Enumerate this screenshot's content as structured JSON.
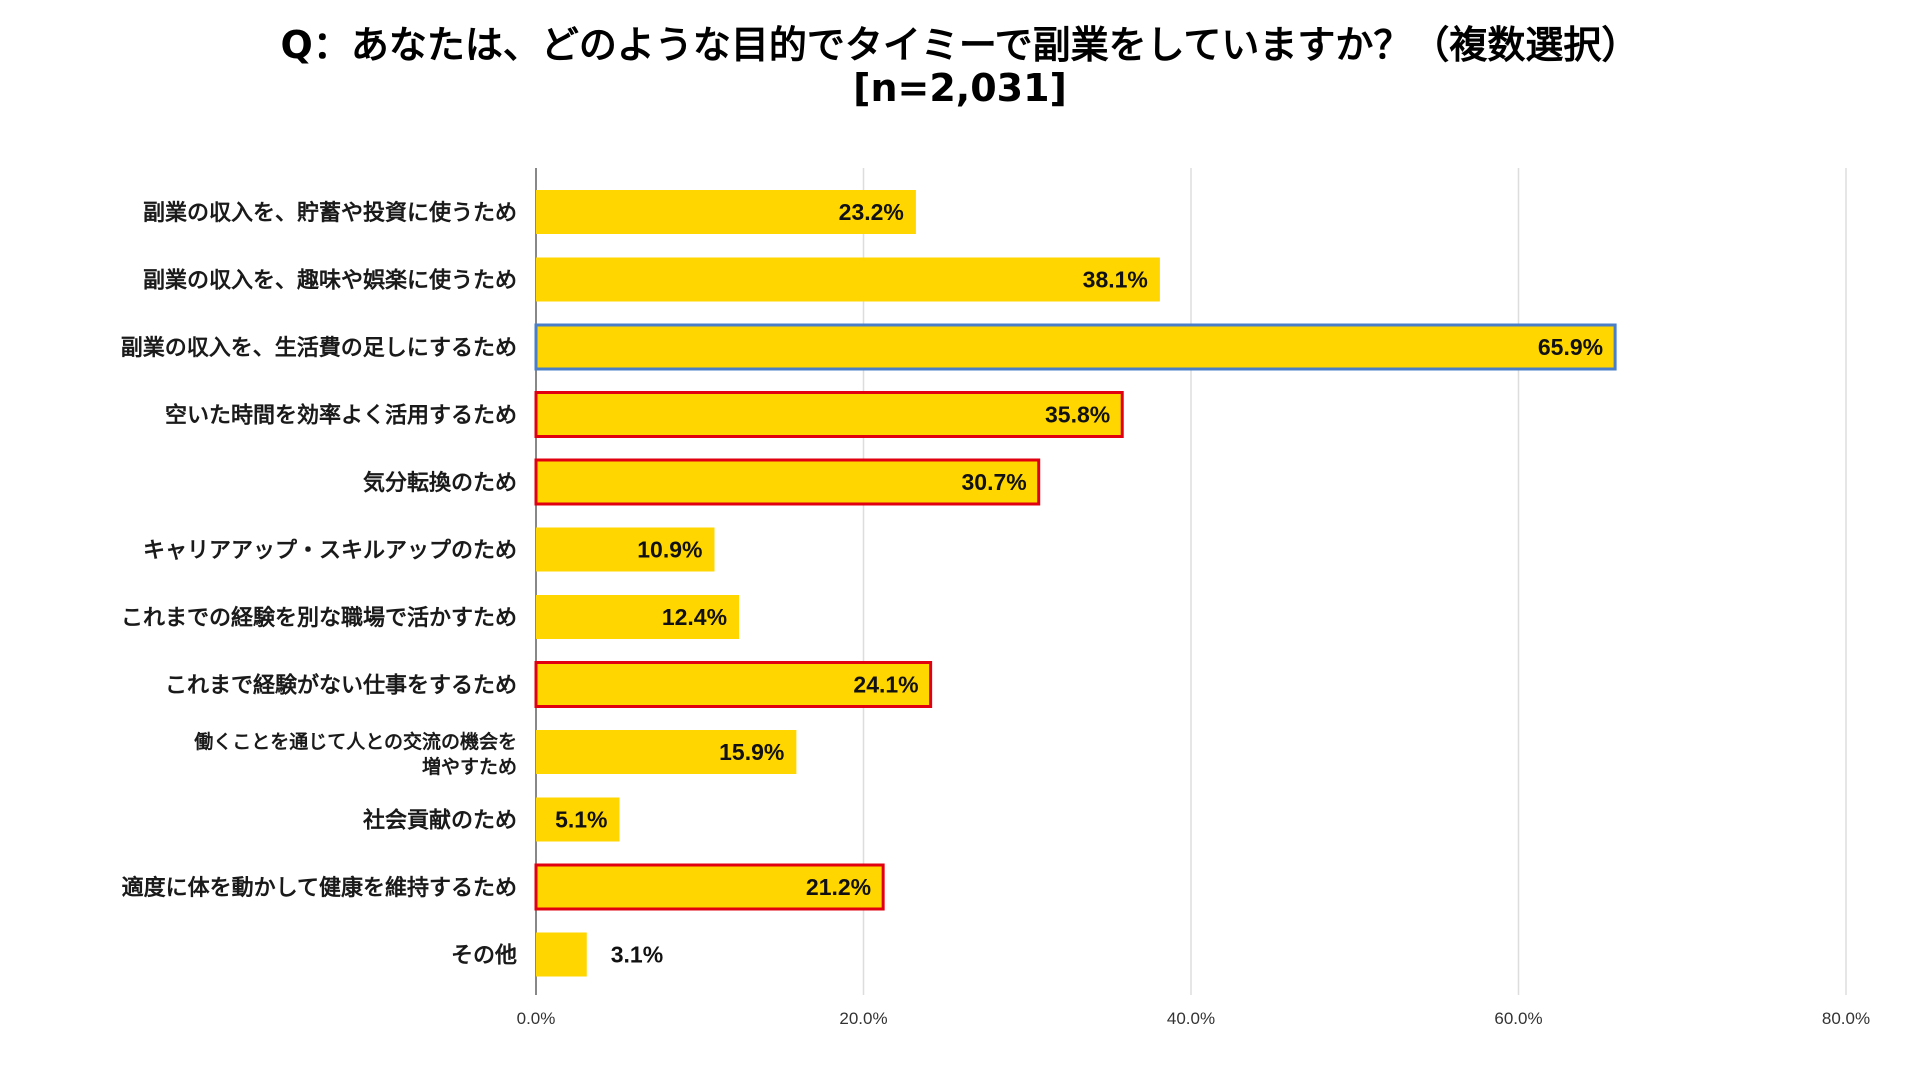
{
  "chart_data": {
    "type": "bar",
    "orientation": "horizontal",
    "title": "Q：あなたは、どのような目的でタイミーで副業をしていますか？（複数選択）",
    "subtitle": "[n=2,031]",
    "categories": [
      "副業の収入を、貯蓄や投資に使うため",
      "副業の収入を、趣味や娯楽に使うため",
      "副業の収入を、生活費の足しにするため",
      "空いた時間を効率よく活用するため",
      "気分転換のため",
      "キャリアアップ・スキルアップのため",
      "これまでの経験を別な職場で活かすため",
      "これまで経験がない仕事をするため",
      "働くことを通じて人との交流の機会を増やすため",
      "社会貢献のため",
      "適度に体を動かして健康を維持するため",
      "その他"
    ],
    "category_display_lines": [
      [
        "副業の収入を、貯蓄や投資に使うため"
      ],
      [
        "副業の収入を、趣味や娯楽に使うため"
      ],
      [
        "副業の収入を、生活費の足しにするため"
      ],
      [
        "空いた時間を効率よく活用するため"
      ],
      [
        "気分転換のため"
      ],
      [
        "キャリアアップ・スキルアップのため"
      ],
      [
        "これまでの経験を別な職場で活かすため"
      ],
      [
        "これまで経験がない仕事をするため"
      ],
      [
        "働くことを通じて人との交流の機会を",
        "増やすため"
      ],
      [
        "社会貢献のため"
      ],
      [
        "適度に体を動かして健康を維持するため"
      ],
      [
        "その他"
      ]
    ],
    "values": [
      23.2,
      38.1,
      65.9,
      35.8,
      30.7,
      10.9,
      12.4,
      24.1,
      15.9,
      5.1,
      21.2,
      3.1
    ],
    "value_labels": [
      "23.2%",
      "38.1%",
      "65.9%",
      "35.8%",
      "30.7%",
      "10.9%",
      "12.4%",
      "24.1%",
      "15.9%",
      "5.1%",
      "21.2%",
      "3.1%"
    ],
    "highlight": [
      "none",
      "none",
      "blue",
      "red",
      "red",
      "none",
      "none",
      "red",
      "none",
      "none",
      "red",
      "none"
    ],
    "xlim": [
      0,
      80
    ],
    "x_ticks": [
      0,
      20,
      40,
      60,
      80
    ],
    "x_tick_labels": [
      "0.0%",
      "20.0%",
      "40.0%",
      "60.0%",
      "80.0%"
    ],
    "grid": true,
    "xlabel": "",
    "ylabel": ""
  },
  "colors": {
    "bar": "#FFD600",
    "highlight_red": "#E0000F",
    "highlight_blue": "#4A7FC8",
    "grid": "#DDDDDD",
    "axis": "#888888"
  }
}
